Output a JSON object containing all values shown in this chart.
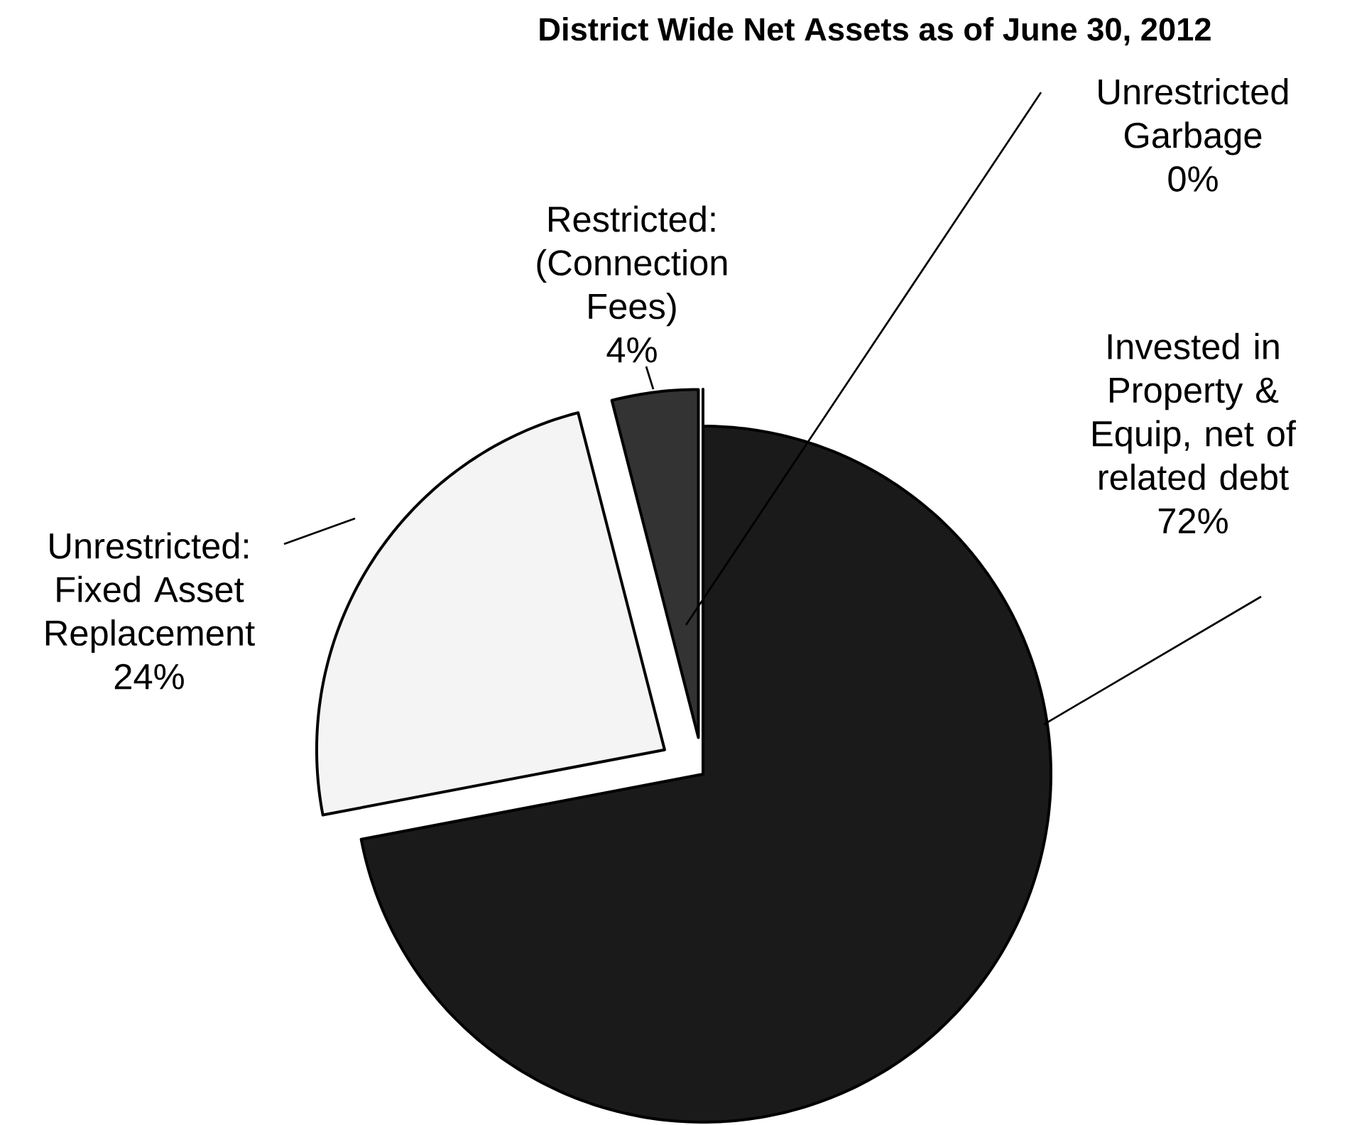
{
  "chart_data": {
    "type": "pie",
    "title": "District Wide Net Assets as of June 30, 2012",
    "categories": [
      "Invested in Property & Equip, net of related debt",
      "Unrestricted: Fixed Asset Replacement",
      "Restricted: (Connection Fees)",
      "Unrestricted Garbage"
    ],
    "values": [
      72,
      24,
      4,
      0
    ],
    "value_labels": [
      "72%",
      "24%",
      "4%",
      "0%"
    ],
    "colors": [
      "#1a1a1a",
      "#f4f4f4",
      "#333333",
      "#dddddd"
    ]
  }
}
